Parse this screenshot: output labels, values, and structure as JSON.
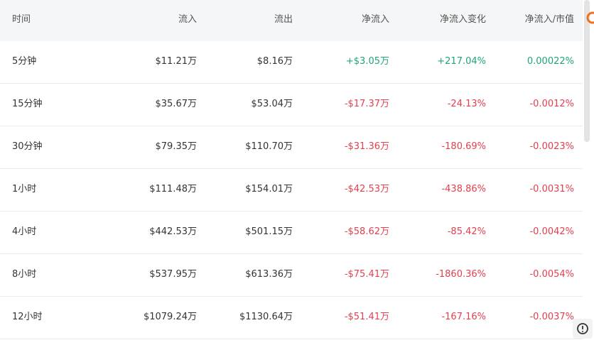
{
  "table": {
    "header": [
      "时间",
      "流入",
      "流出",
      "净流入",
      "净流入变化",
      "净流入/市值"
    ],
    "colors": {
      "text": "#333333",
      "header_text": "#555555",
      "up": "#1fa37a",
      "down": "#e2404f"
    },
    "rows": [
      {
        "cells": [
          "5分钟",
          "$11.21万",
          "$8.16万",
          "+$3.05万",
          "+217.04%",
          "0.00022%"
        ],
        "tone": "up"
      },
      {
        "cells": [
          "15分钟",
          "$35.67万",
          "$53.04万",
          "-$17.37万",
          "-24.13%",
          "-0.0012%"
        ],
        "tone": "down"
      },
      {
        "cells": [
          "30分钟",
          "$79.35万",
          "$110.70万",
          "-$31.36万",
          "-180.69%",
          "-0.0023%"
        ],
        "tone": "down"
      },
      {
        "cells": [
          "1小时",
          "$111.48万",
          "$154.01万",
          "-$42.53万",
          "-438.86%",
          "-0.0031%"
        ],
        "tone": "down"
      },
      {
        "cells": [
          "4小时",
          "$442.53万",
          "$501.15万",
          "-$58.62万",
          "-85.42%",
          "-0.0042%"
        ],
        "tone": "down"
      },
      {
        "cells": [
          "8小时",
          "$537.95万",
          "$613.36万",
          "-$75.41万",
          "-1860.36%",
          "-0.0054%"
        ],
        "tone": "down"
      },
      {
        "cells": [
          "12小时",
          "$1079.24万",
          "$1130.64万",
          "-$51.41万",
          "-167.16%",
          "-0.0037%"
        ],
        "tone": "down"
      }
    ]
  }
}
